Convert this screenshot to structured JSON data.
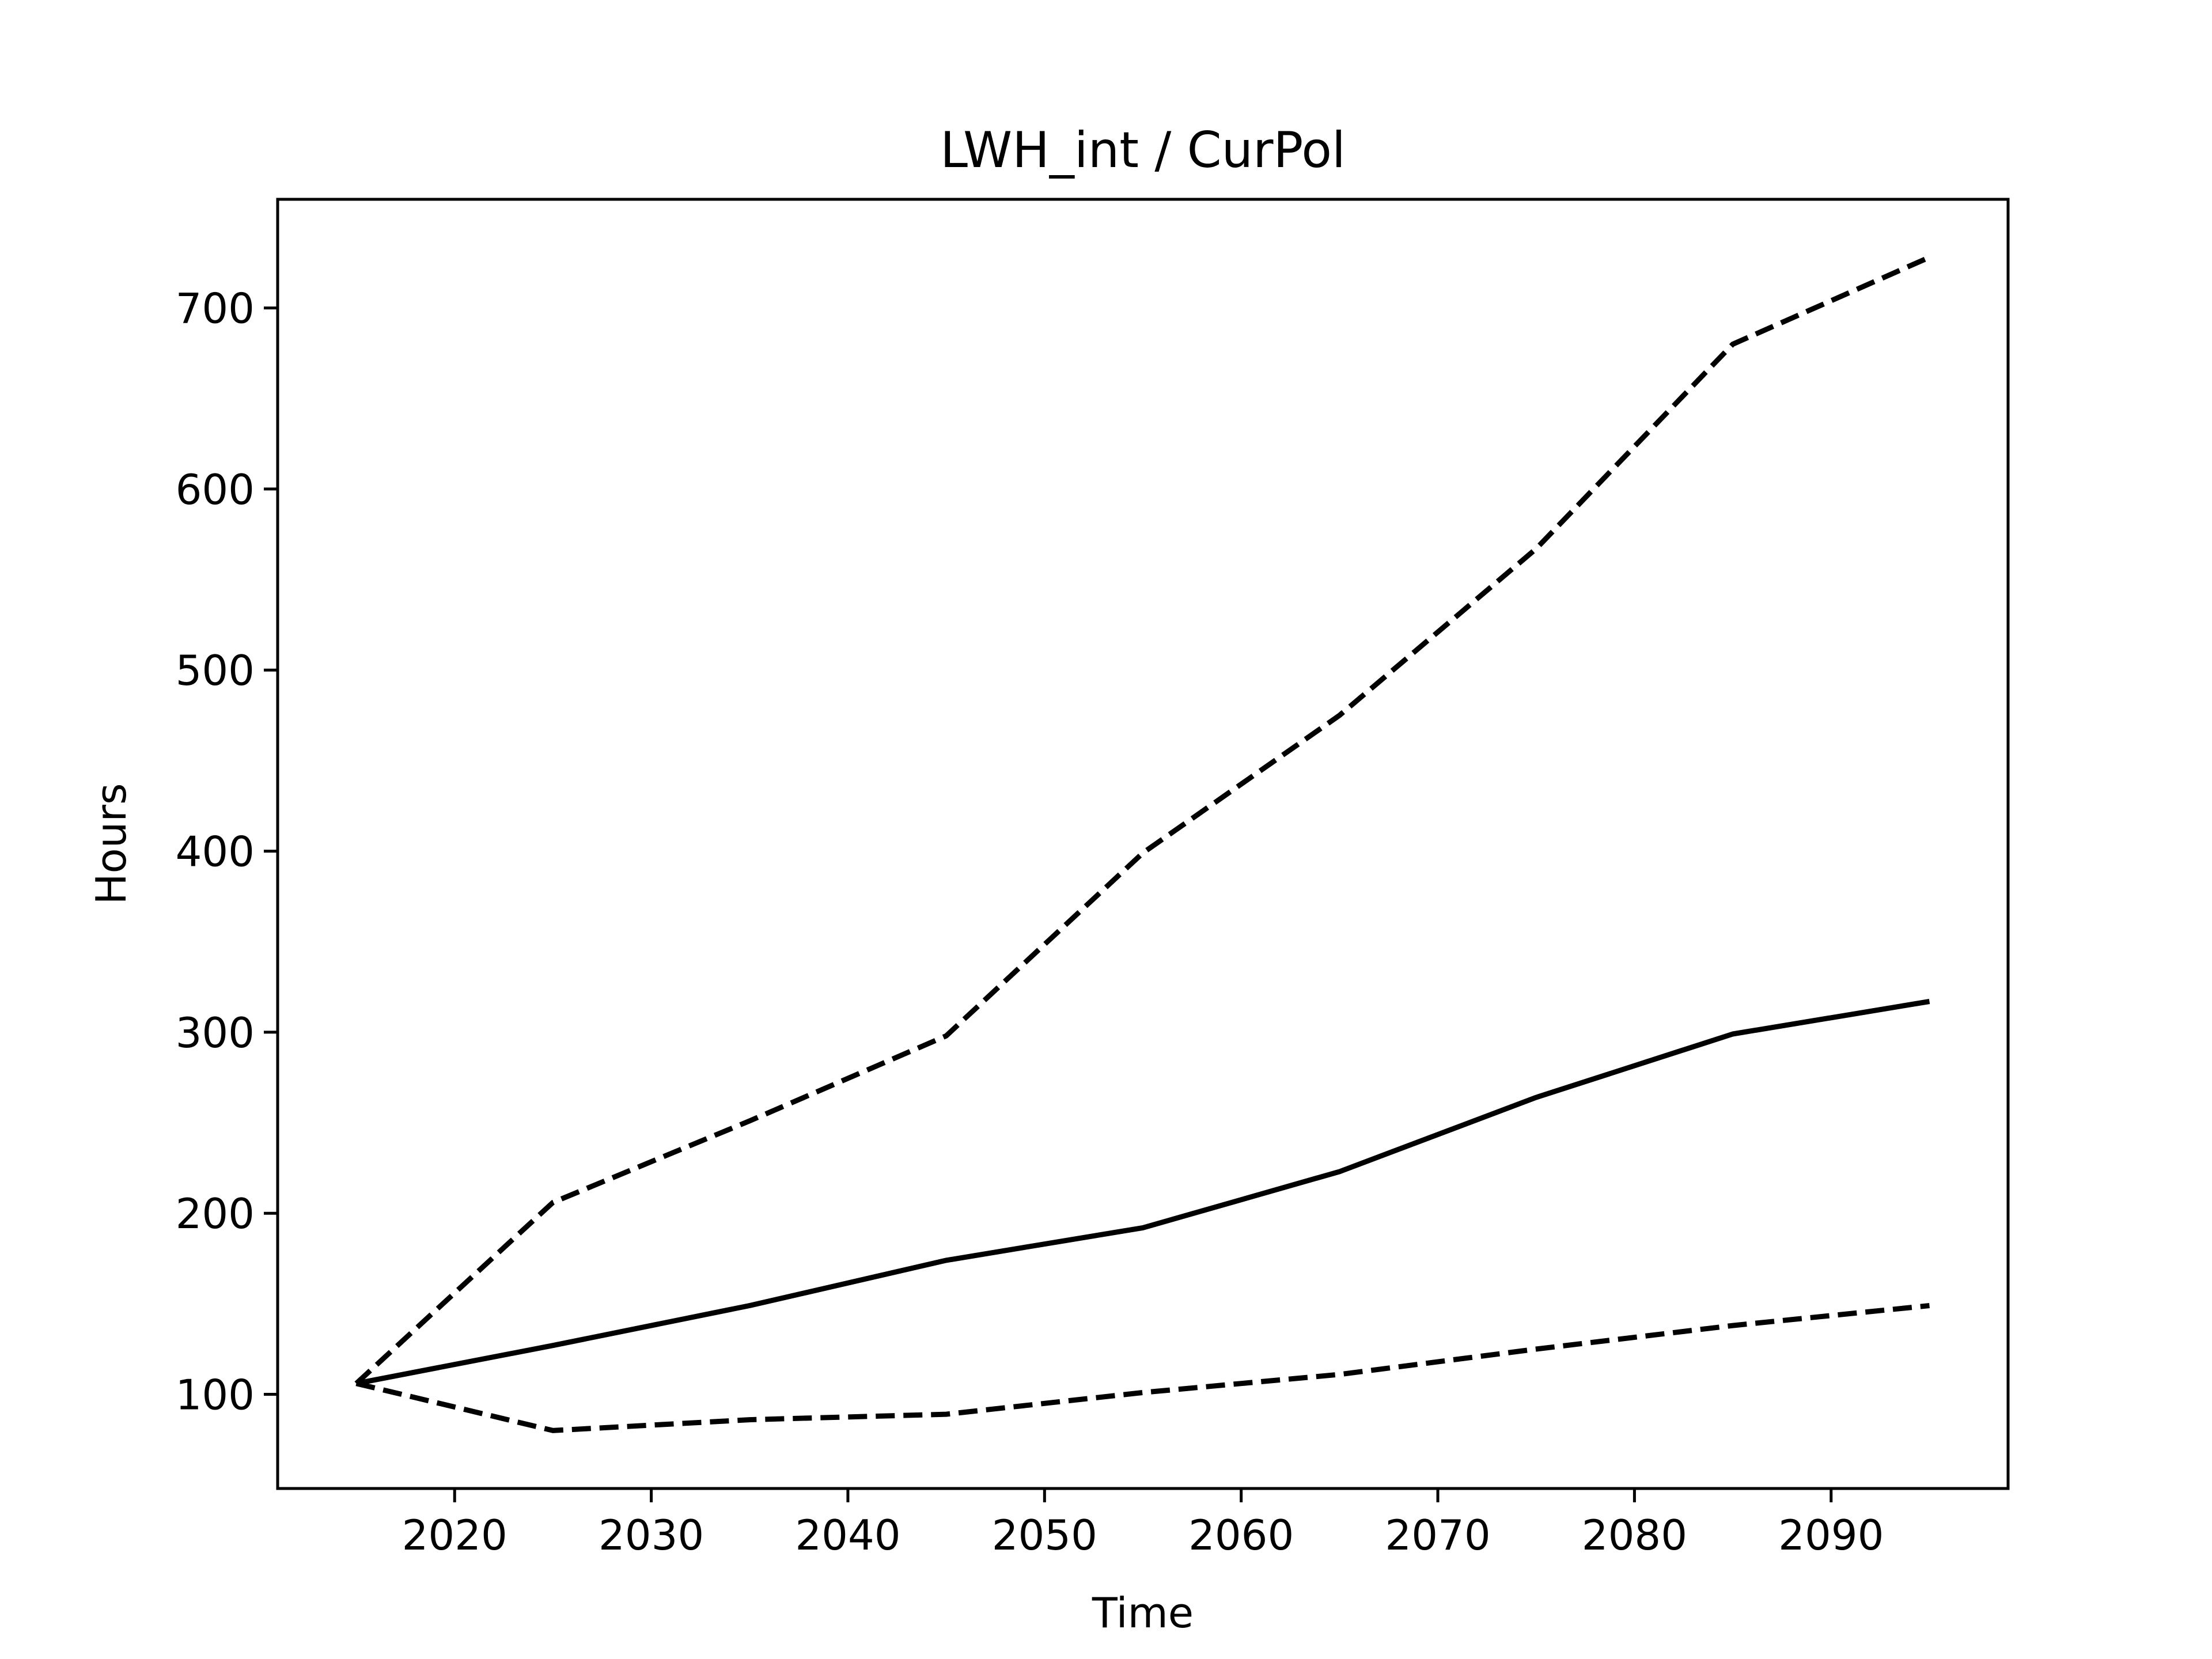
{
  "chart_data": {
    "type": "line",
    "title": "LWH_int / CurPol",
    "xlabel": "Time",
    "ylabel": "Hours",
    "xlim": [
      2011,
      2099
    ],
    "ylim": [
      48,
      760
    ],
    "xticks": [
      2020,
      2030,
      2040,
      2050,
      2060,
      2070,
      2080,
      2090
    ],
    "yticks": [
      100,
      200,
      300,
      400,
      500,
      600,
      700
    ],
    "grid": false,
    "x": [
      2015,
      2025,
      2035,
      2045,
      2055,
      2065,
      2075,
      2085,
      2095
    ],
    "series": [
      {
        "style": "solid",
        "color": "#000000",
        "values": [
          106,
          127,
          149,
          174,
          192,
          223,
          264,
          299,
          317
        ]
      },
      {
        "style": "dashed",
        "color": "#000000",
        "values": [
          106,
          206,
          251,
          298,
          399,
          475,
          567,
          680,
          728
        ]
      },
      {
        "style": "dashed",
        "color": "#000000",
        "values": [
          106,
          80,
          86,
          89,
          101,
          111,
          125,
          138,
          149
        ]
      }
    ]
  }
}
